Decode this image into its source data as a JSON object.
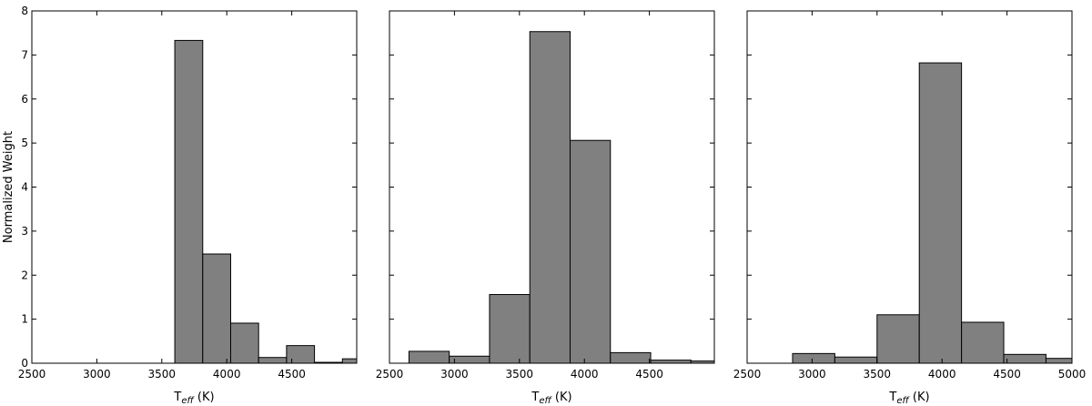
{
  "chart_data": [
    {
      "type": "bar",
      "ylabel": "Normalized Weight",
      "xlabel_main": "T",
      "xlabel_sub": "eff",
      "xlabel_unit": " (K)",
      "xlim": [
        2500,
        5000
      ],
      "ylim": [
        0,
        8
      ],
      "xticks": [
        2500,
        3000,
        3500,
        4000,
        4500
      ],
      "yticks": [
        0,
        1,
        2,
        3,
        4,
        5,
        6,
        7,
        8
      ],
      "bar_color": "#808080",
      "bins": [
        {
          "x0": 3600,
          "x1": 3815,
          "value": 7.33
        },
        {
          "x0": 3815,
          "x1": 4030,
          "value": 2.48
        },
        {
          "x0": 4030,
          "x1": 4245,
          "value": 0.91
        },
        {
          "x0": 4245,
          "x1": 4460,
          "value": 0.13
        },
        {
          "x0": 4460,
          "x1": 4675,
          "value": 0.4
        },
        {
          "x0": 4675,
          "x1": 4890,
          "value": 0.02
        },
        {
          "x0": 4890,
          "x1": 5000,
          "value": 0.1
        }
      ]
    },
    {
      "type": "bar",
      "ylabel": "",
      "xlabel_main": "T",
      "xlabel_sub": "eff",
      "xlabel_unit": " (K)",
      "xlim": [
        2500,
        5000
      ],
      "ylim": [
        0,
        8
      ],
      "xticks": [
        2500,
        3000,
        3500,
        4000,
        4500
      ],
      "yticks": [
        0,
        1,
        2,
        3,
        4,
        5,
        6,
        7,
        8
      ],
      "bar_color": "#808080",
      "bins": [
        {
          "x0": 2650,
          "x1": 2960,
          "value": 0.27
        },
        {
          "x0": 2960,
          "x1": 3270,
          "value": 0.16
        },
        {
          "x0": 3270,
          "x1": 3580,
          "value": 1.56
        },
        {
          "x0": 3580,
          "x1": 3890,
          "value": 7.53
        },
        {
          "x0": 3890,
          "x1": 4200,
          "value": 5.06
        },
        {
          "x0": 4200,
          "x1": 4510,
          "value": 0.24
        },
        {
          "x0": 4510,
          "x1": 4820,
          "value": 0.07
        },
        {
          "x0": 4820,
          "x1": 5000,
          "value": 0.05
        }
      ]
    },
    {
      "type": "bar",
      "ylabel": "",
      "xlabel_main": "T",
      "xlabel_sub": "eff",
      "xlabel_unit": " (K)",
      "xlim": [
        2500,
        5000
      ],
      "ylim": [
        0,
        8
      ],
      "xticks": [
        2500,
        3000,
        3500,
        4000,
        4500,
        5000
      ],
      "yticks": [
        0,
        1,
        2,
        3,
        4,
        5,
        6,
        7,
        8
      ],
      "bar_color": "#808080",
      "bins": [
        {
          "x0": 2850,
          "x1": 3175,
          "value": 0.22
        },
        {
          "x0": 3175,
          "x1": 3500,
          "value": 0.14
        },
        {
          "x0": 3500,
          "x1": 3825,
          "value": 1.1
        },
        {
          "x0": 3825,
          "x1": 4150,
          "value": 6.82
        },
        {
          "x0": 4150,
          "x1": 4475,
          "value": 0.93
        },
        {
          "x0": 4475,
          "x1": 4800,
          "value": 0.2
        },
        {
          "x0": 4800,
          "x1": 5000,
          "value": 0.11
        }
      ]
    }
  ]
}
